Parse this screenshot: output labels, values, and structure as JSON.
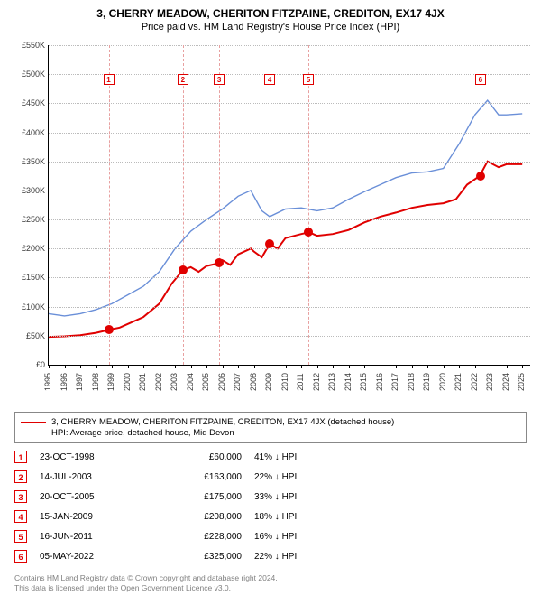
{
  "title": "3, CHERRY MEADOW, CHERITON FITZPAINE, CREDITON, EX17 4JX",
  "subtitle": "Price paid vs. HM Land Registry's House Price Index (HPI)",
  "chart": {
    "type": "line",
    "x_domain": [
      1995,
      2025.5
    ],
    "y_domain": [
      0,
      550
    ],
    "y_unit_prefix": "£",
    "y_unit_suffix": "K",
    "y_ticks": [
      0,
      50,
      100,
      150,
      200,
      250,
      300,
      350,
      400,
      450,
      500,
      550
    ],
    "x_ticks": [
      1995,
      1996,
      1997,
      1998,
      1999,
      2000,
      2001,
      2002,
      2003,
      2004,
      2005,
      2006,
      2007,
      2008,
      2009,
      2010,
      2011,
      2012,
      2013,
      2014,
      2015,
      2016,
      2017,
      2018,
      2019,
      2020,
      2021,
      2022,
      2023,
      2024,
      2025
    ],
    "grid_color": "#bbbbbb",
    "background_color": "#ffffff",
    "series": [
      {
        "name": "property",
        "label": "3, CHERRY MEADOW, CHERITON FITZPAINE, CREDITON, EX17 4JX (detached house)",
        "color": "#e00000",
        "width": 2,
        "points": [
          [
            1995,
            48
          ],
          [
            1996,
            49
          ],
          [
            1997,
            51
          ],
          [
            1998,
            55
          ],
          [
            1998.8,
            60
          ],
          [
            1999.5,
            64
          ],
          [
            2000,
            70
          ],
          [
            2001,
            82
          ],
          [
            2002,
            105
          ],
          [
            2002.8,
            140
          ],
          [
            2003.5,
            163
          ],
          [
            2004,
            168
          ],
          [
            2004.5,
            160
          ],
          [
            2005,
            170
          ],
          [
            2005.8,
            175
          ],
          [
            2006,
            180
          ],
          [
            2006.5,
            172
          ],
          [
            2007,
            190
          ],
          [
            2007.8,
            200
          ],
          [
            2008,
            195
          ],
          [
            2008.5,
            185
          ],
          [
            2009,
            208
          ],
          [
            2009.5,
            200
          ],
          [
            2010,
            218
          ],
          [
            2011,
            225
          ],
          [
            2011.5,
            228
          ],
          [
            2012,
            222
          ],
          [
            2013,
            225
          ],
          [
            2014,
            232
          ],
          [
            2015,
            245
          ],
          [
            2016,
            255
          ],
          [
            2017,
            262
          ],
          [
            2018,
            270
          ],
          [
            2019,
            275
          ],
          [
            2020,
            278
          ],
          [
            2020.8,
            285
          ],
          [
            2021.5,
            310
          ],
          [
            2022.3,
            325
          ],
          [
            2022.8,
            350
          ],
          [
            2023.5,
            340
          ],
          [
            2024,
            345
          ],
          [
            2025,
            345
          ]
        ]
      },
      {
        "name": "hpi",
        "label": "HPI: Average price, detached house, Mid Devon",
        "color": "#6a8fd8",
        "width": 1.4,
        "points": [
          [
            1995,
            88
          ],
          [
            1996,
            84
          ],
          [
            1997,
            88
          ],
          [
            1998,
            95
          ],
          [
            1999,
            105
          ],
          [
            2000,
            120
          ],
          [
            2001,
            135
          ],
          [
            2002,
            160
          ],
          [
            2003,
            200
          ],
          [
            2004,
            230
          ],
          [
            2005,
            250
          ],
          [
            2006,
            268
          ],
          [
            2007,
            290
          ],
          [
            2007.8,
            300
          ],
          [
            2008.5,
            265
          ],
          [
            2009,
            255
          ],
          [
            2010,
            268
          ],
          [
            2011,
            270
          ],
          [
            2012,
            265
          ],
          [
            2013,
            270
          ],
          [
            2014,
            285
          ],
          [
            2015,
            298
          ],
          [
            2016,
            310
          ],
          [
            2017,
            322
          ],
          [
            2018,
            330
          ],
          [
            2019,
            332
          ],
          [
            2020,
            338
          ],
          [
            2021,
            380
          ],
          [
            2022,
            430
          ],
          [
            2022.8,
            455
          ],
          [
            2023.5,
            430
          ],
          [
            2024,
            430
          ],
          [
            2025,
            432
          ]
        ]
      }
    ],
    "sale_markers": [
      {
        "n": 1,
        "x": 1998.8,
        "y": 60,
        "box_y": 500
      },
      {
        "n": 2,
        "x": 2003.5,
        "y": 163,
        "box_y": 500
      },
      {
        "n": 3,
        "x": 2005.8,
        "y": 175,
        "box_y": 500
      },
      {
        "n": 4,
        "x": 2009.0,
        "y": 208,
        "box_y": 500
      },
      {
        "n": 5,
        "x": 2011.45,
        "y": 228,
        "box_y": 500
      },
      {
        "n": 6,
        "x": 2022.35,
        "y": 325,
        "box_y": 500
      }
    ],
    "marker_box_color": "#e00000",
    "sale_vline_color": "#e8a0a0"
  },
  "legend": {
    "items": [
      {
        "color": "#e00000",
        "width": 2,
        "label": "3, CHERRY MEADOW, CHERITON FITZPAINE, CREDITON, EX17 4JX (detached house)"
      },
      {
        "color": "#6a8fd8",
        "width": 1.4,
        "label": "HPI: Average price, detached house, Mid Devon"
      }
    ]
  },
  "sales_table": {
    "rows": [
      {
        "n": "1",
        "date": "23-OCT-1998",
        "price": "£60,000",
        "pct": "41% ↓ HPI"
      },
      {
        "n": "2",
        "date": "14-JUL-2003",
        "price": "£163,000",
        "pct": "22% ↓ HPI"
      },
      {
        "n": "3",
        "date": "20-OCT-2005",
        "price": "£175,000",
        "pct": "33% ↓ HPI"
      },
      {
        "n": "4",
        "date": "15-JAN-2009",
        "price": "£208,000",
        "pct": "18% ↓ HPI"
      },
      {
        "n": "5",
        "date": "16-JUN-2011",
        "price": "£228,000",
        "pct": "16% ↓ HPI"
      },
      {
        "n": "6",
        "date": "05-MAY-2022",
        "price": "£325,000",
        "pct": "22% ↓ HPI"
      }
    ]
  },
  "footer": {
    "line1": "Contains HM Land Registry data © Crown copyright and database right 2024.",
    "line2": "This data is licensed under the Open Government Licence v3.0."
  }
}
